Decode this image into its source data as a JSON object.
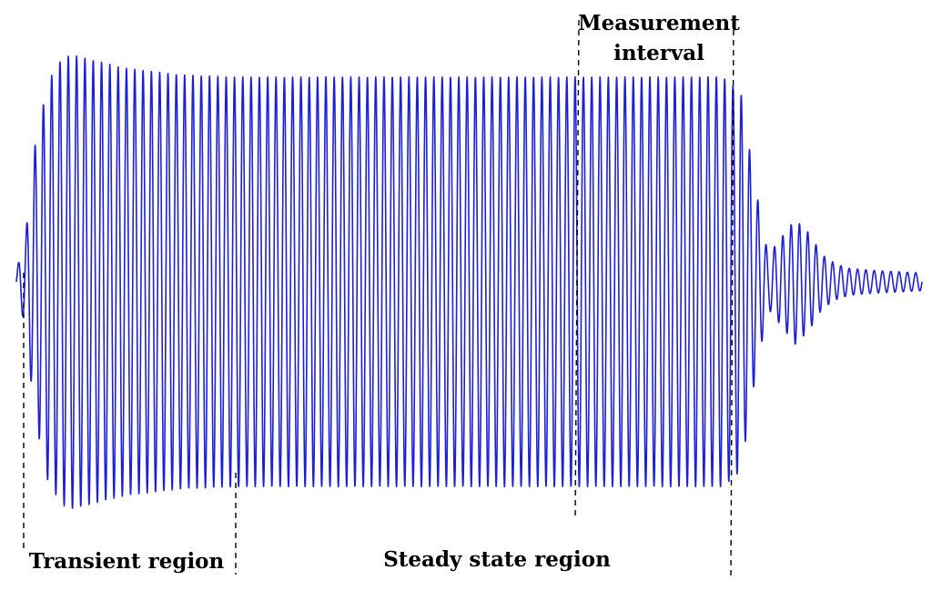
{
  "chart_data": {
    "type": "line",
    "title": "",
    "xlabel": "",
    "ylabel": "",
    "grid": false,
    "axes_visible": false,
    "line_color": "#1f1fd6",
    "annotations": {
      "transient": "Transient region",
      "steady": "Steady state region",
      "measurement_line1": "Measurement",
      "measurement_line2": "interval"
    },
    "waveform": {
      "description_free": true,
      "cycles_total": 109,
      "envelope_x_norm": [
        0.0,
        0.01,
        0.02,
        0.035,
        0.05,
        0.06,
        0.08,
        0.12,
        0.18,
        0.24,
        0.3,
        0.5,
        0.6,
        0.78,
        0.8,
        0.815,
        0.83,
        0.845,
        0.86,
        0.875,
        0.89,
        0.905,
        0.92,
        0.95,
        1.0
      ],
      "envelope_amp": [
        0.05,
        0.2,
        0.6,
        0.9,
        1.0,
        1.02,
        1.0,
        0.96,
        0.93,
        0.92,
        0.92,
        0.92,
        0.92,
        0.92,
        0.85,
        0.45,
        0.12,
        0.2,
        0.28,
        0.22,
        0.12,
        0.08,
        0.06,
        0.05,
        0.04
      ]
    }
  }
}
